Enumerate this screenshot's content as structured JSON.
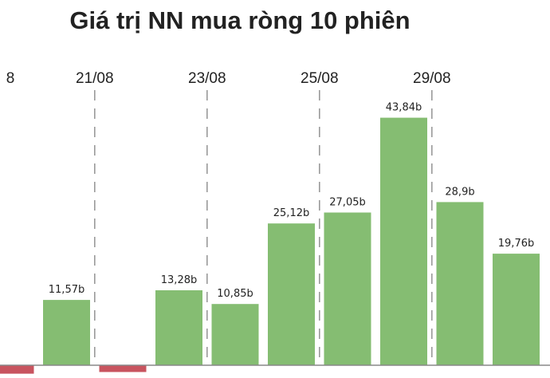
{
  "chart_data": {
    "type": "bar",
    "title": "Giá trị NN mua ròng 10 phiên",
    "xlabel": "",
    "ylabel": "",
    "categories": [
      "",
      "",
      "",
      "",
      "",
      "",
      "",
      "",
      "",
      ""
    ],
    "values": [
      -1.5,
      11.57,
      -1.2,
      13.28,
      10.85,
      25.12,
      27.05,
      43.84,
      28.9,
      19.76
    ],
    "data_labels": [
      "",
      "11,57b",
      "",
      "13,28b",
      "10,85b",
      "25,12b",
      "27,05b",
      "43,84b",
      "28,9b",
      "19,76b"
    ],
    "date_ticks": [
      {
        "label": "8",
        "position": 0
      },
      {
        "label": "21/08",
        "position": 1.5
      },
      {
        "label": "23/08",
        "position": 3.5
      },
      {
        "label": "25/08",
        "position": 5.5
      },
      {
        "label": "29/08",
        "position": 7.5
      }
    ],
    "ylim": [
      -1.5,
      45
    ],
    "grid": false,
    "legend": "none",
    "colors": {
      "positive": "#85bd72",
      "negative": "#c8545f",
      "axis": "#888888",
      "gridline": "#9a9a9a"
    }
  }
}
